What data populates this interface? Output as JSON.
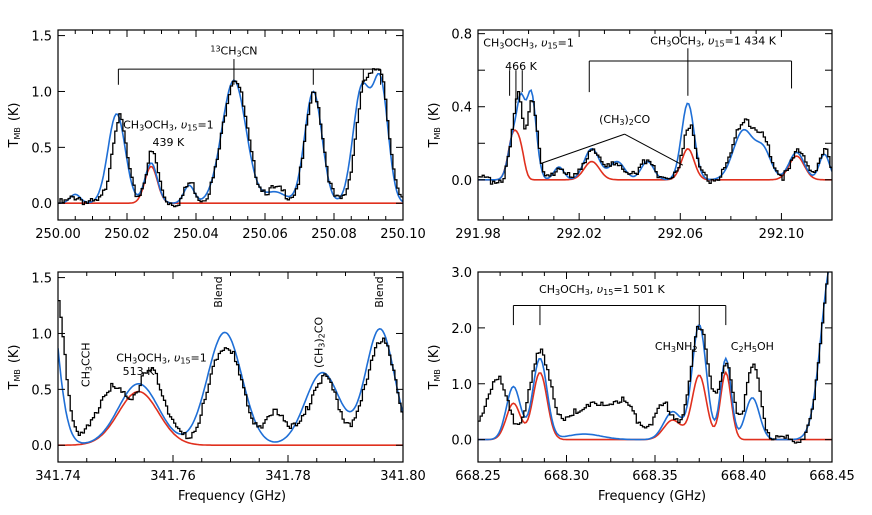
{
  "figure": {
    "xlabel": "Frequency (GHz)",
    "ylabel_main": "T",
    "ylabel_sub": "MB",
    "ylabel_unit": "(K)"
  },
  "colors": {
    "observed": "#000000",
    "model_total": "#1f6fd6",
    "model_species": "#e0301e"
  },
  "chart_data": [
    {
      "type": "line",
      "xlim": [
        250.0,
        250.1
      ],
      "ylim": [
        -0.15,
        1.55
      ],
      "xticks": [
        250.0,
        250.02,
        250.04,
        250.06,
        250.08,
        250.1
      ],
      "xtick_labels": [
        "250.00",
        "250.02",
        "250.04",
        "250.06",
        "250.08",
        "250.10"
      ],
      "yticks": [
        0.0,
        0.5,
        1.0,
        1.5
      ],
      "ytick_labels": [
        "0.0",
        "0.5",
        "1.0",
        "1.5"
      ],
      "baseline": 0.0,
      "series": [
        {
          "role": "observed",
          "peaks": [
            [
              250.005,
              0.06,
              0.0015
            ],
            [
              250.0175,
              0.76,
              0.0022
            ],
            [
              250.027,
              0.45,
              0.0018
            ],
            [
              250.038,
              0.18,
              0.0015
            ],
            [
              250.051,
              1.12,
              0.0035
            ],
            [
              250.063,
              0.12,
              0.003
            ],
            [
              250.074,
              0.98,
              0.0025
            ],
            [
              250.0885,
              1.0,
              0.0025
            ],
            [
              250.0935,
              1.05,
              0.0022
            ]
          ]
        },
        {
          "role": "model_total",
          "peaks": [
            [
              250.005,
              0.08,
              0.0015
            ],
            [
              250.017,
              0.8,
              0.0025
            ],
            [
              250.027,
              0.36,
              0.0018
            ],
            [
              250.038,
              0.16,
              0.0015
            ],
            [
              250.051,
              1.1,
              0.0035
            ],
            [
              250.063,
              0.1,
              0.003
            ],
            [
              250.074,
              1.0,
              0.0025
            ],
            [
              250.088,
              1.02,
              0.0025
            ],
            [
              250.0935,
              1.05,
              0.0022
            ]
          ]
        },
        {
          "role": "model_species",
          "peaks": [
            [
              250.027,
              0.33,
              0.0018
            ]
          ]
        }
      ],
      "annotations": [
        {
          "text": "13CH3CN",
          "x": 250.051,
          "y": 1.33
        },
        {
          "text": "CH3OCH3, v15=1",
          "x": 250.032,
          "y": 0.67
        },
        {
          "text": "439 K",
          "x": 250.032,
          "y": 0.51
        }
      ],
      "brackets": [
        {
          "y": 1.2,
          "xs": [
            250.0175,
            250.051,
            250.074,
            250.0885,
            250.0935
          ],
          "apex": 250.051,
          "apex_y": 1.29,
          "drop_to": 1.06
        }
      ]
    },
    {
      "type": "line",
      "xlim": [
        291.98,
        292.12
      ],
      "ylim": [
        -0.22,
        0.82
      ],
      "xticks": [
        291.98,
        292.02,
        292.06,
        292.1
      ],
      "xtick_labels": [
        "291.98",
        "292.02",
        "292.06",
        "292.10"
      ],
      "yticks": [
        0.0,
        0.2,
        0.4,
        0.6,
        0.8
      ],
      "ytick_labels": [
        "0.0",
        "",
        "0.4",
        "",
        "0.8"
      ],
      "baseline": 0.0,
      "series": [
        {
          "role": "observed",
          "peaks": [
            [
              291.994,
              0.22,
              0.002
            ],
            [
              291.996,
              0.3,
              0.0015
            ],
            [
              292.001,
              0.45,
              0.002
            ],
            [
              292.012,
              0.08,
              0.002
            ],
            [
              292.025,
              0.18,
              0.003
            ],
            [
              292.035,
              0.1,
              0.003
            ],
            [
              292.047,
              0.12,
              0.0025
            ],
            [
              292.063,
              0.3,
              0.0025
            ],
            [
              292.085,
              0.33,
              0.004
            ],
            [
              292.093,
              0.18,
              0.003
            ],
            [
              292.107,
              0.16,
              0.003
            ],
            [
              292.117,
              0.15,
              0.002
            ]
          ]
        },
        {
          "role": "model_total",
          "peaks": [
            [
              291.994,
              0.24,
              0.002
            ],
            [
              291.997,
              0.33,
              0.0015
            ],
            [
              292.001,
              0.48,
              0.002
            ],
            [
              292.012,
              0.07,
              0.002
            ],
            [
              292.025,
              0.17,
              0.003
            ],
            [
              292.035,
              0.1,
              0.003
            ],
            [
              292.047,
              0.1,
              0.0025
            ],
            [
              292.063,
              0.42,
              0.0025
            ],
            [
              292.085,
              0.27,
              0.004
            ],
            [
              292.093,
              0.15,
              0.003
            ],
            [
              292.106,
              0.15,
              0.003
            ],
            [
              292.117,
              0.14,
              0.002
            ]
          ]
        },
        {
          "role": "model_species",
          "peaks": [
            [
              291.994,
              0.25,
              0.002
            ],
            [
              291.997,
              0.12,
              0.0015
            ],
            [
              292.025,
              0.1,
              0.003
            ],
            [
              292.063,
              0.17,
              0.0025
            ],
            [
              292.106,
              0.13,
              0.003
            ]
          ]
        }
      ],
      "annotations": [
        {
          "text": "CH3OCH3, v15=1",
          "x": 292.0,
          "y": 0.73
        },
        {
          "text": "466 K",
          "x": 291.997,
          "y": 0.6
        },
        {
          "text": "CH3OCH3, v15=1 434 K",
          "x": 292.073,
          "y": 0.74
        },
        {
          "text": "(CH3)2CO",
          "x": 292.038,
          "y": 0.31
        }
      ]
    },
    {
      "type": "line",
      "xlim": [
        341.74,
        341.8
      ],
      "ylim": [
        -0.15,
        1.55
      ],
      "xticks": [
        341.74,
        341.76,
        341.78,
        341.8
      ],
      "xtick_labels": [
        "341.74",
        "341.76",
        "341.78",
        "341.80"
      ],
      "yticks": [
        0.0,
        0.5,
        1.0,
        1.5
      ],
      "ytick_labels": [
        "0.0",
        "0.5",
        "1.0",
        "1.5"
      ],
      "baseline": 0.0,
      "series": [
        {
          "role": "observed",
          "peaks": [
            [
              341.739,
              1.5,
              0.0018
            ],
            [
              341.749,
              0.5,
              0.0025
            ],
            [
              341.756,
              0.65,
              0.0025
            ],
            [
              341.769,
              0.9,
              0.0028
            ],
            [
              341.778,
              0.28,
              0.002
            ],
            [
              341.786,
              0.6,
              0.0025
            ],
            [
              341.796,
              0.95,
              0.0025
            ]
          ]
        },
        {
          "role": "model_total",
          "peaks": [
            [
              341.737,
              2.2,
              0.0022
            ],
            [
              341.754,
              0.55,
              0.0035
            ],
            [
              341.769,
              1.01,
              0.003
            ],
            [
              341.786,
              0.65,
              0.003
            ],
            [
              341.796,
              1.04,
              0.0025
            ]
          ]
        },
        {
          "role": "model_species",
          "peaks": [
            [
              341.754,
              0.48,
              0.0035
            ]
          ]
        }
      ],
      "annotations": [
        {
          "text": "CH3CCH",
          "x": 341.7455,
          "y": 0.72,
          "rotate": true
        },
        {
          "text": "Blend",
          "x": 341.7685,
          "y": 1.37,
          "rotate": true
        },
        {
          "text": "(CH3)2CO",
          "x": 341.786,
          "y": 0.92,
          "rotate": true
        },
        {
          "text": "Blend",
          "x": 341.7965,
          "y": 1.37,
          "rotate": true
        },
        {
          "text": "CH3OCH3, v15=1",
          "x": 341.758,
          "y": 0.75
        },
        {
          "text": "513 K",
          "x": 341.754,
          "y": 0.63
        }
      ]
    },
    {
      "type": "line",
      "xlim": [
        668.25,
        668.45
      ],
      "ylim": [
        -0.4,
        3.0
      ],
      "xticks": [
        668.25,
        668.3,
        668.35,
        668.4,
        668.45
      ],
      "xtick_labels": [
        "668.25",
        "668.30",
        "668.35",
        "668.40",
        "668.45"
      ],
      "yticks": [
        0.0,
        1.0,
        2.0,
        3.0
      ],
      "ytick_labels": [
        "0.0",
        "1.0",
        "2.0",
        "3.0"
      ],
      "baseline": 0.0,
      "series": [
        {
          "role": "observed",
          "peaks": [
            [
              668.26,
              1.1,
              0.006
            ],
            [
              668.285,
              1.55,
              0.006
            ],
            [
              668.31,
              0.6,
              0.008
            ],
            [
              668.33,
              0.7,
              0.008
            ],
            [
              668.355,
              0.6,
              0.006
            ],
            [
              668.375,
              2.05,
              0.005
            ],
            [
              668.39,
              1.3,
              0.004
            ],
            [
              668.405,
              1.3,
              0.004
            ],
            [
              668.45,
              3.4,
              0.006
            ]
          ]
        },
        {
          "role": "model_total",
          "peaks": [
            [
              668.27,
              0.95,
              0.004
            ],
            [
              668.285,
              1.45,
              0.004
            ],
            [
              668.31,
              0.1,
              0.01
            ],
            [
              668.36,
              0.5,
              0.005
            ],
            [
              668.375,
              2.05,
              0.004
            ],
            [
              668.39,
              1.45,
              0.003
            ],
            [
              668.405,
              0.75,
              0.004
            ],
            [
              668.45,
              3.2,
              0.006
            ]
          ]
        },
        {
          "role": "model_species",
          "peaks": [
            [
              668.27,
              0.65,
              0.004
            ],
            [
              668.285,
              1.2,
              0.004
            ],
            [
              668.36,
              0.35,
              0.005
            ],
            [
              668.375,
              1.15,
              0.004
            ],
            [
              668.39,
              1.2,
              0.003
            ]
          ]
        }
      ],
      "annotations": [
        {
          "text": "CH3OCH3, v15=1 501 K",
          "x": 668.32,
          "y": 2.62
        },
        {
          "text": "CH3NH2",
          "x": 668.362,
          "y": 1.6
        },
        {
          "text": "C2H5OH",
          "x": 668.405,
          "y": 1.6
        }
      ],
      "brackets": [
        {
          "y": 2.4,
          "xs": [
            668.27,
            668.285,
            668.375,
            668.39
          ],
          "drop_to": 2.05
        }
      ]
    }
  ]
}
